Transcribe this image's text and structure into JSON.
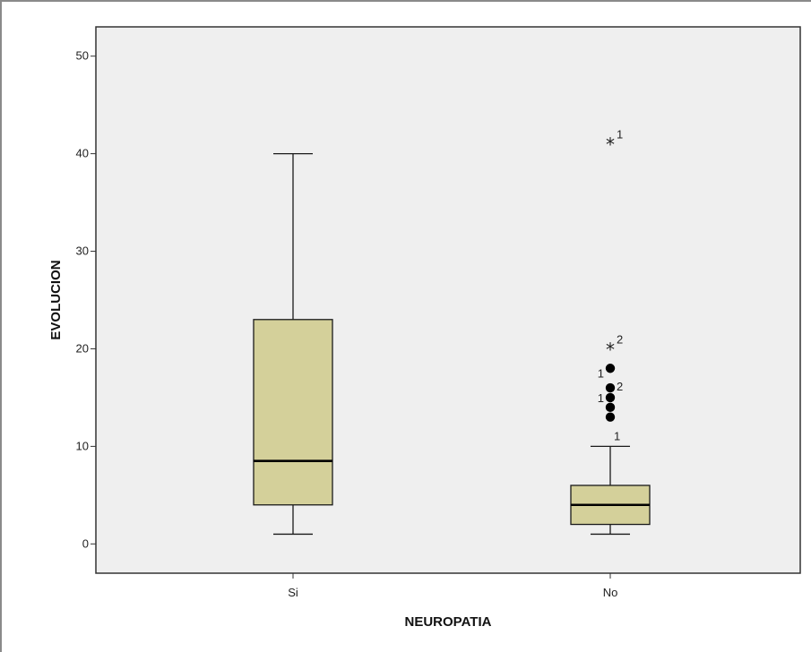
{
  "chart_data": {
    "type": "box",
    "title": "",
    "xlabel": "NEUROPATIA",
    "ylabel": "EVOLUCION",
    "ylim": [
      -3,
      53
    ],
    "yticks": [
      0,
      10,
      20,
      30,
      40,
      50
    ],
    "grid": false,
    "categories": [
      "Si",
      "No"
    ],
    "boxes": [
      {
        "category": "Si",
        "whisker_low": 1,
        "q1": 4,
        "median": 8.5,
        "q3": 23,
        "whisker_high": 40,
        "outliers": []
      },
      {
        "category": "No",
        "whisker_low": 1,
        "q1": 2,
        "median": 4,
        "q3": 6,
        "whisker_high": 10,
        "outliers": [
          {
            "value": 13,
            "marker": "circle",
            "label": "1"
          },
          {
            "value": 14,
            "marker": "circle",
            "label": ""
          },
          {
            "value": 15,
            "marker": "circle",
            "label": "1"
          },
          {
            "value": 16,
            "marker": "circle",
            "label": "2"
          },
          {
            "value": 18,
            "marker": "circle",
            "label": "1"
          },
          {
            "value": 20,
            "marker": "star",
            "label": "2"
          },
          {
            "value": 41,
            "marker": "star",
            "label": "1"
          }
        ]
      }
    ]
  },
  "colors": {
    "plot_background": "#efefef",
    "box_fill": "#d4d09a",
    "line": "#1a1a1a",
    "axis": "#333333"
  }
}
